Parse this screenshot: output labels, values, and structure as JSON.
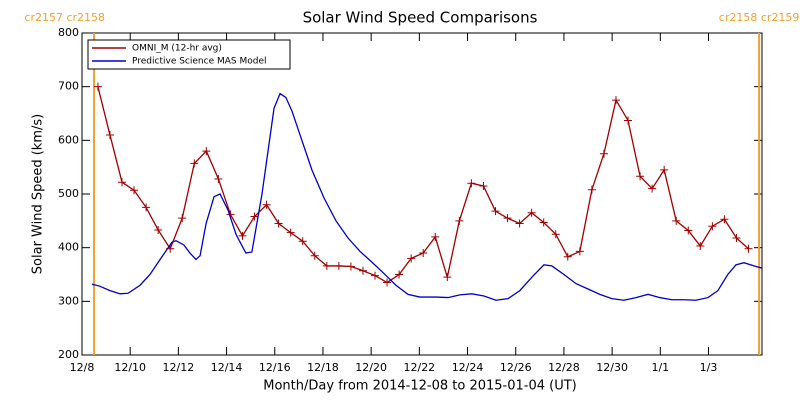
{
  "chart_data": {
    "type": "line",
    "title": "Solar Wind Speed Comparisons",
    "xlabel": "Month/Day from 2014-12-08 to 2015-01-04 (UT)",
    "ylabel": "Solar Wind Speed (km/s)",
    "xlim": [
      0,
      28.22
    ],
    "ylim": [
      200,
      800
    ],
    "xticks": [
      {
        "value": 0,
        "label": "12/8"
      },
      {
        "value": 2,
        "label": "12/10"
      },
      {
        "value": 4,
        "label": "12/12"
      },
      {
        "value": 6,
        "label": "12/14"
      },
      {
        "value": 8,
        "label": "12/16"
      },
      {
        "value": 10,
        "label": "12/18"
      },
      {
        "value": 12,
        "label": "12/20"
      },
      {
        "value": 14,
        "label": "12/22"
      },
      {
        "value": 16,
        "label": "12/24"
      },
      {
        "value": 18,
        "label": "12/26"
      },
      {
        "value": 20,
        "label": "12/28"
      },
      {
        "value": 22,
        "label": "12/30"
      },
      {
        "value": 24,
        "label": "1/1"
      },
      {
        "value": 26,
        "label": "1/3"
      }
    ],
    "yticks": [
      200,
      300,
      400,
      500,
      600,
      700,
      800
    ],
    "legend": "upper left",
    "annotations": [
      {
        "x": 0.5,
        "label": "cr2157 cr2158",
        "color": "#f0a030"
      },
      {
        "x": 28.1,
        "label": "cr2158 cr2159",
        "color": "#f0a030"
      }
    ],
    "series": [
      {
        "name": "OMNI_M (12-hr avg)",
        "color": "#a00000",
        "markers": true,
        "x": [
          0.66,
          1.16,
          1.66,
          2.16,
          2.66,
          3.16,
          3.66,
          4.16,
          4.66,
          5.16,
          5.66,
          6.16,
          6.66,
          7.16,
          7.66,
          8.16,
          8.66,
          9.16,
          9.66,
          10.16,
          10.66,
          11.16,
          11.66,
          12.16,
          12.66,
          13.16,
          13.66,
          14.16,
          14.66,
          15.16,
          15.66,
          16.16,
          16.66,
          17.16,
          17.66,
          18.16,
          18.66,
          19.16,
          19.66,
          20.16,
          20.66,
          21.16,
          21.66,
          22.16,
          22.66,
          23.16,
          23.66,
          24.16,
          24.66,
          25.16,
          25.66,
          26.16,
          26.66,
          27.16,
          27.66
        ],
        "values": [
          700,
          610,
          522,
          507,
          475,
          433,
          398,
          455,
          557,
          580,
          528,
          462,
          422,
          458,
          480,
          445,
          428,
          412,
          385,
          366,
          366,
          365,
          357,
          348,
          335,
          350,
          380,
          390,
          420,
          345,
          450,
          520,
          515,
          468,
          455,
          445,
          465,
          447,
          425,
          383,
          393,
          508,
          575,
          675,
          637,
          533,
          510,
          545,
          450,
          432,
          403,
          440,
          453,
          418,
          398
        ]
      },
      {
        "name": "Predictive Science MAS Model",
        "color": "#0000c8",
        "markers": false,
        "x": [
          0.41,
          0.75,
          1.16,
          1.58,
          1.91,
          2.41,
          2.82,
          3.24,
          3.73,
          3.9,
          4.23,
          4.48,
          4.73,
          4.9,
          5.15,
          5.48,
          5.73,
          6.06,
          6.39,
          6.8,
          7.05,
          7.47,
          7.97,
          8.22,
          8.46,
          8.71,
          9.05,
          9.54,
          10.04,
          10.54,
          11.04,
          11.54,
          12.03,
          12.53,
          13.03,
          13.53,
          14.02,
          14.69,
          15.19,
          15.68,
          16.18,
          16.68,
          17.18,
          17.68,
          18.17,
          18.67,
          19.17,
          19.5,
          20.0,
          20.5,
          21.0,
          21.49,
          21.99,
          22.49,
          22.99,
          23.49,
          23.98,
          24.48,
          24.98,
          25.48,
          25.98,
          26.39,
          26.8,
          27.14,
          27.47,
          27.97,
          28.22
        ],
        "values": [
          332,
          328,
          320,
          314,
          315,
          330,
          350,
          378,
          410,
          413,
          405,
          390,
          378,
          385,
          445,
          495,
          500,
          470,
          425,
          390,
          392,
          500,
          660,
          687,
          680,
          655,
          610,
          545,
          493,
          450,
          418,
          393,
          373,
          352,
          330,
          313,
          308,
          308,
          307,
          312,
          314,
          310,
          302,
          305,
          320,
          345,
          368,
          366,
          350,
          333,
          323,
          313,
          305,
          302,
          307,
          313,
          307,
          303,
          303,
          302,
          307,
          320,
          350,
          368,
          372,
          365,
          362
        ]
      }
    ]
  }
}
